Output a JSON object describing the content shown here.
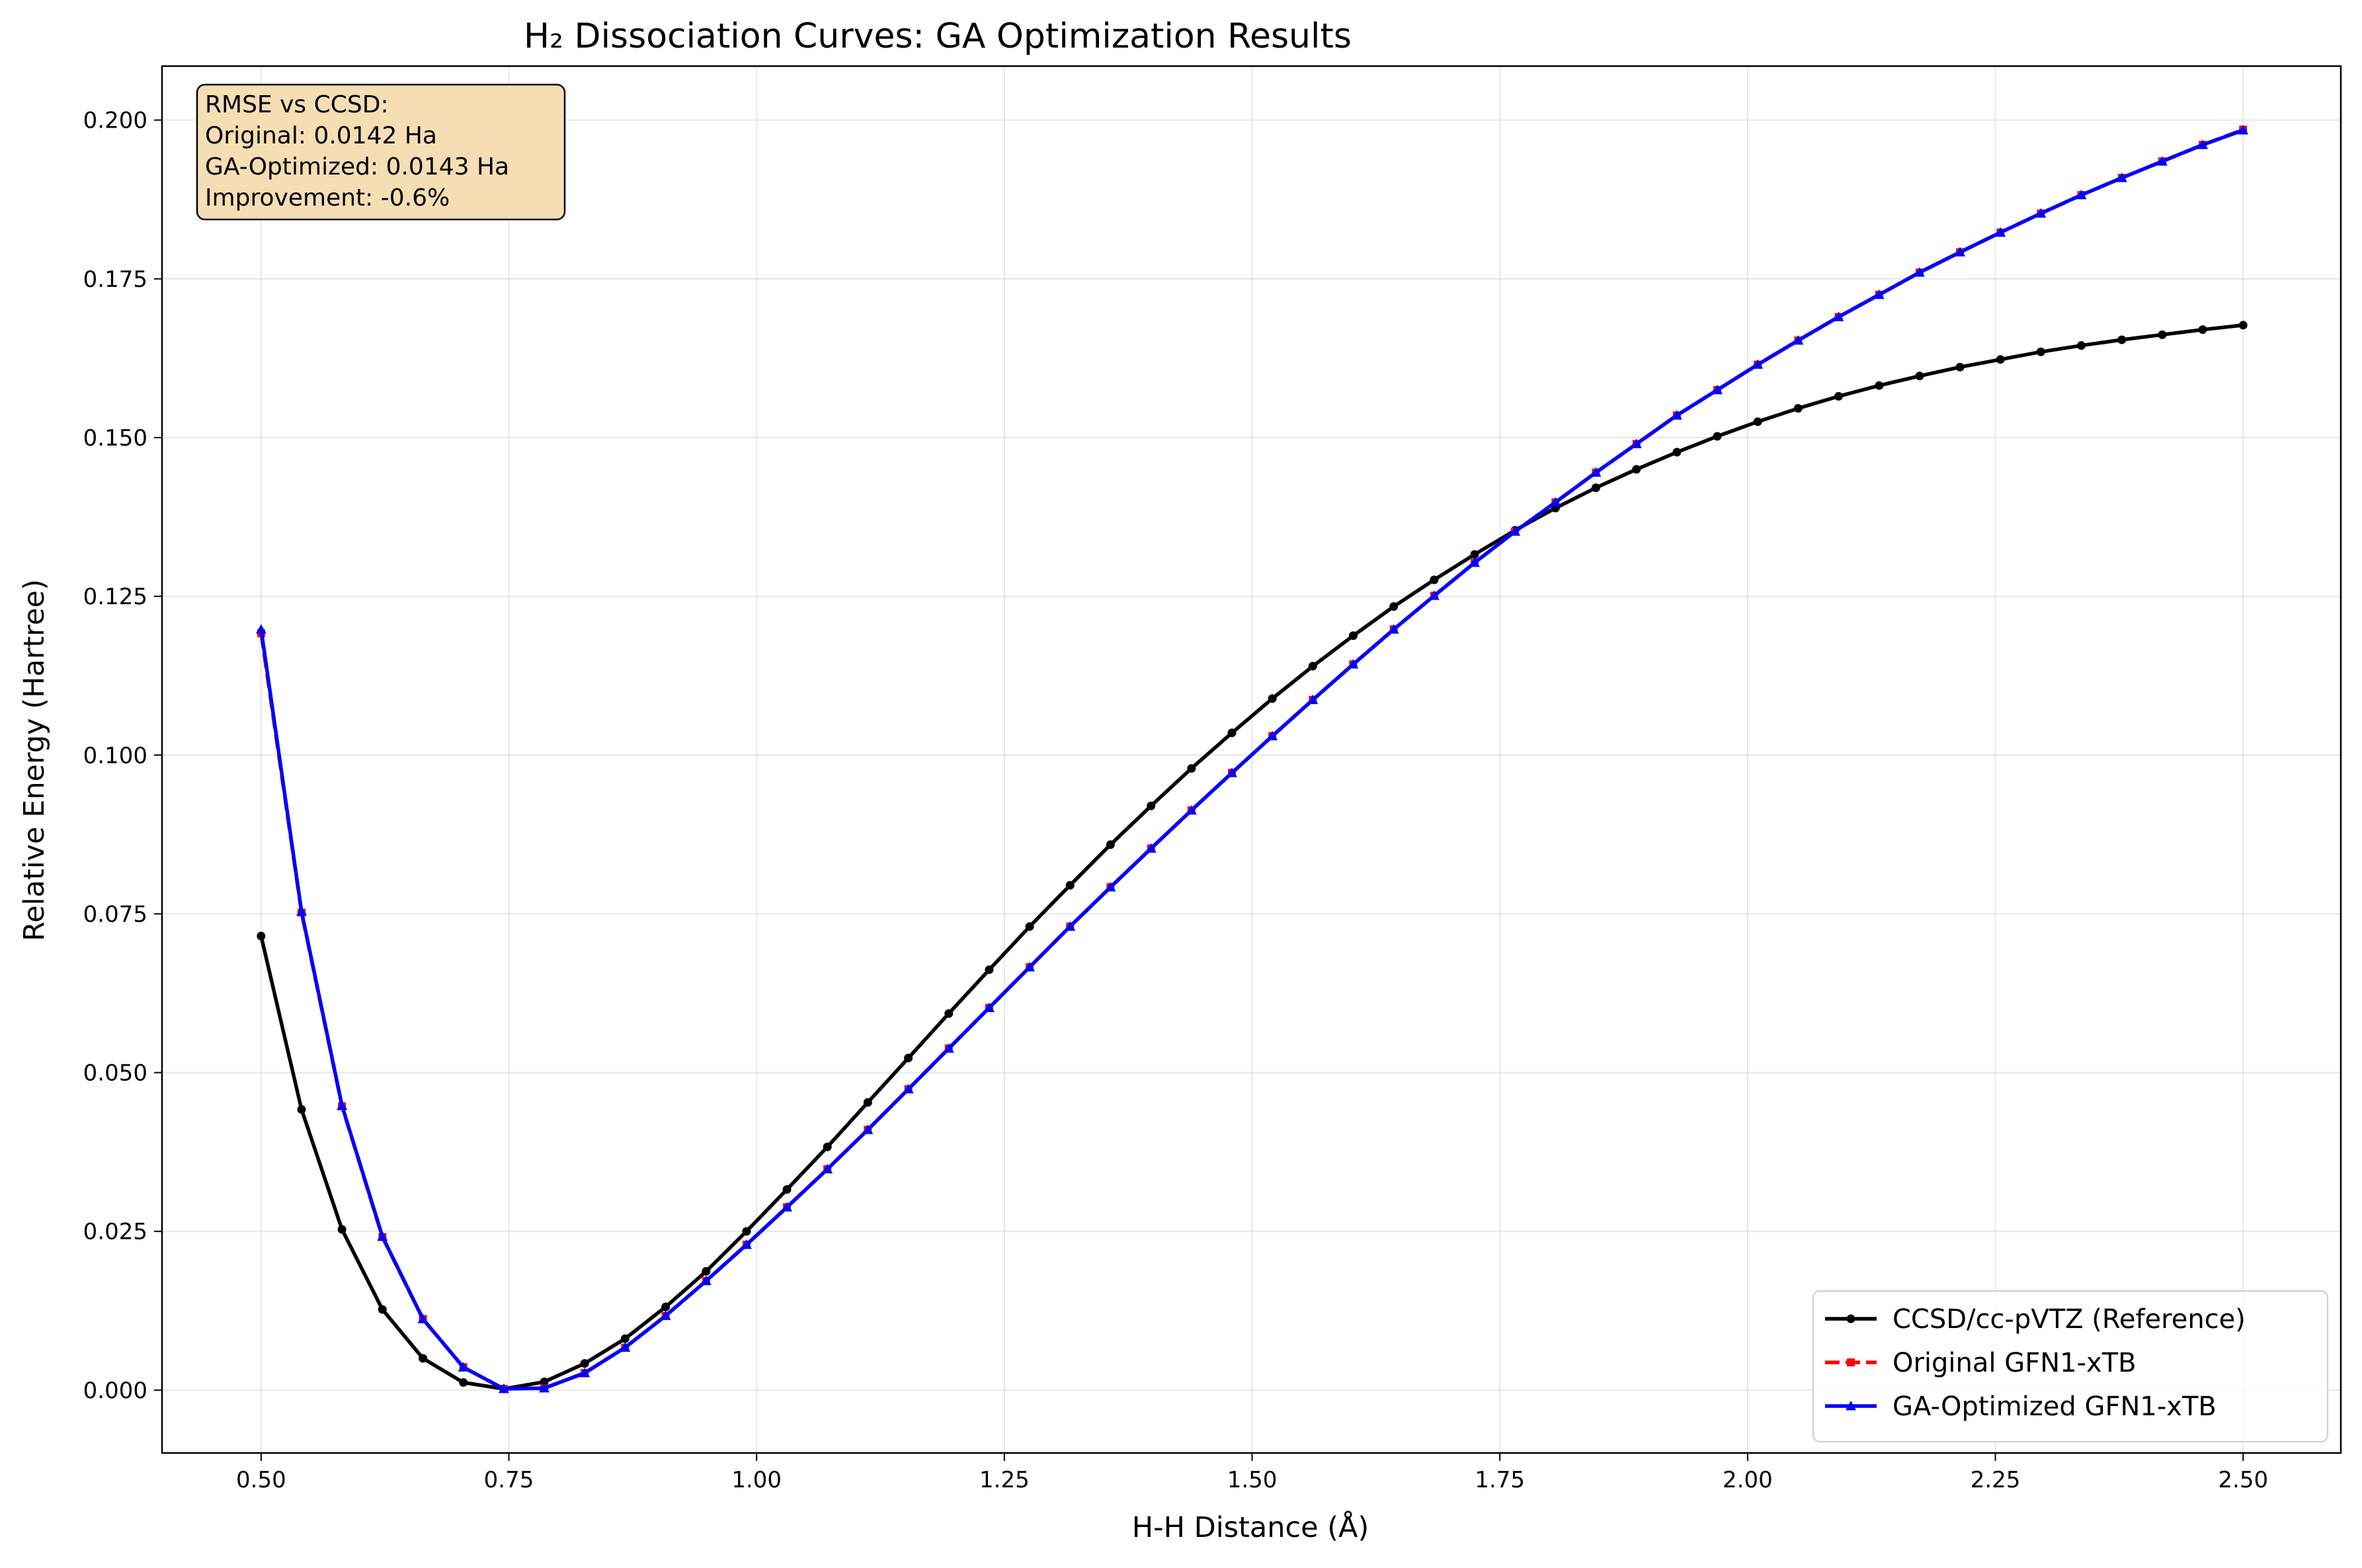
{
  "chart_data": {
    "type": "line",
    "title": "H₂ Dissociation Curves: GA Optimization Results",
    "xlabel": "H-H Distance (Å)",
    "ylabel": "Relative Energy (Hartree)",
    "xlim": [
      0.4,
      2.5986
    ],
    "ylim": [
      -0.0099,
      0.2085
    ],
    "x_ticks": [
      0.5,
      0.75,
      1.0,
      1.25,
      1.5,
      1.75,
      2.0,
      2.25,
      2.5
    ],
    "x_tick_labels": [
      "0.50",
      "0.75",
      "1.00",
      "1.25",
      "1.50",
      "1.75",
      "2.00",
      "2.25",
      "2.50"
    ],
    "y_ticks": [
      0.0,
      0.025,
      0.05,
      0.075,
      0.1,
      0.125,
      0.15,
      0.175,
      0.2
    ],
    "y_tick_labels": [
      "0.000",
      "0.025",
      "0.050",
      "0.075",
      "0.100",
      "0.125",
      "0.150",
      "0.175",
      "0.200"
    ],
    "grid": true,
    "legend_position": "lower-right",
    "annotation": {
      "position": "top-left",
      "lines": [
        "RMSE vs CCSD:",
        "Original: 0.0142 Ha",
        "GA-Optimized: 0.0143 Ha",
        "Improvement: -0.6%"
      ]
    },
    "x": [
      0.5,
      0.5408,
      0.5816,
      0.6224,
      0.6633,
      0.7041,
      0.7449,
      0.7857,
      0.8265,
      0.8673,
      0.9082,
      0.949,
      0.9898,
      1.0306,
      1.0714,
      1.1122,
      1.1531,
      1.1939,
      1.2347,
      1.2755,
      1.3163,
      1.3571,
      1.398,
      1.4388,
      1.4796,
      1.5204,
      1.5612,
      1.602,
      1.6429,
      1.6837,
      1.7245,
      1.7653,
      1.8061,
      1.8469,
      1.8878,
      1.9286,
      1.9694,
      2.0102,
      2.051,
      2.0918,
      2.1327,
      2.1735,
      2.2143,
      2.2551,
      2.2959,
      2.3367,
      2.3776,
      2.4184,
      2.4592,
      2.5
    ],
    "series": [
      {
        "name": "CCSD/cc-pVTZ (Reference)",
        "color": "#000000",
        "marker": "circle",
        "dash": "solid",
        "values": [
          0.0715,
          0.0442,
          0.0253,
          0.0127,
          0.005,
          0.0012,
          0.0002,
          0.0013,
          0.0042,
          0.0081,
          0.0131,
          0.0187,
          0.025,
          0.0316,
          0.0383,
          0.0453,
          0.0523,
          0.0593,
          0.0662,
          0.073,
          0.0795,
          0.0859,
          0.092,
          0.0979,
          0.1035,
          0.1089,
          0.114,
          0.1188,
          0.1234,
          0.1276,
          0.1316,
          0.1354,
          0.1389,
          0.1421,
          0.145,
          0.1477,
          0.1502,
          0.1525,
          0.1546,
          0.1565,
          0.1582,
          0.1597,
          0.1611,
          0.1623,
          0.1635,
          0.1645,
          0.1654,
          0.1662,
          0.167,
          0.1677
        ]
      },
      {
        "name": "Original GFN1-xTB",
        "color": "#ff0000",
        "marker": "square",
        "dash": "dashed",
        "values": [
          0.1192,
          0.0752,
          0.0447,
          0.0241,
          0.0112,
          0.0036,
          0.0002,
          0.0003,
          0.0027,
          0.0067,
          0.0117,
          0.0172,
          0.0229,
          0.0288,
          0.0348,
          0.041,
          0.0474,
          0.0538,
          0.0602,
          0.0666,
          0.073,
          0.0792,
          0.0853,
          0.0913,
          0.0972,
          0.103,
          0.1087,
          0.1143,
          0.1198,
          0.1251,
          0.1303,
          0.1352,
          0.1398,
          0.1445,
          0.149,
          0.1535,
          0.1575,
          0.1615,
          0.1653,
          0.169,
          0.1725,
          0.176,
          0.1792,
          0.1823,
          0.1853,
          0.1882,
          0.1909,
          0.1935,
          0.1961,
          0.1985
        ]
      },
      {
        "name": "GA-Optimized GFN1-xTB",
        "color": "#0000ff",
        "marker": "triangle",
        "dash": "solid",
        "values": [
          0.1198,
          0.0754,
          0.0448,
          0.0242,
          0.0112,
          0.0036,
          0.0002,
          0.0003,
          0.0027,
          0.0067,
          0.0117,
          0.0172,
          0.0229,
          0.0288,
          0.0348,
          0.041,
          0.0474,
          0.0538,
          0.0602,
          0.0666,
          0.073,
          0.0792,
          0.0853,
          0.0913,
          0.0972,
          0.103,
          0.1087,
          0.1143,
          0.1198,
          0.1251,
          0.1303,
          0.1352,
          0.1398,
          0.1445,
          0.149,
          0.1535,
          0.1575,
          0.1615,
          0.1653,
          0.169,
          0.1725,
          0.176,
          0.1792,
          0.1823,
          0.1853,
          0.1882,
          0.1909,
          0.1935,
          0.1961,
          0.1984
        ]
      }
    ]
  }
}
